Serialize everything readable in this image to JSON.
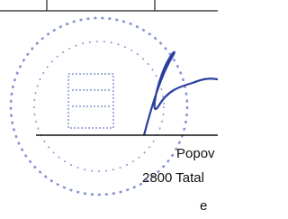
{
  "document": {
    "lines": [
      "Popov",
      "2800 Tatal",
      "e"
    ]
  }
}
